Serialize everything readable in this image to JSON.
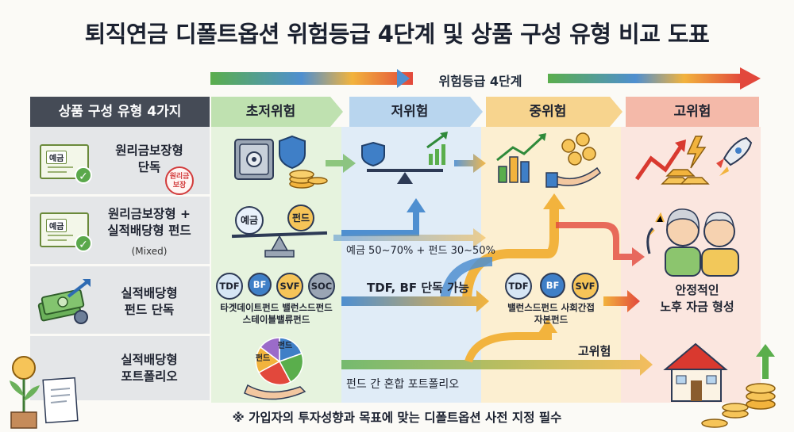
{
  "title": "퇴직연금 디폴트옵션 위험등급 4단계 및 상품 구성 유형 비교 도표",
  "stage_caption": "위험등급 4단계",
  "header": {
    "types_label": "상품 구성 유형 4가지",
    "levels": [
      "초저위험",
      "저위험",
      "중위험",
      "고위험"
    ]
  },
  "rows": [
    {
      "title": "원리금보장형\n단독",
      "card_tag": "예금",
      "stamp": "원리금\n보장"
    },
    {
      "title": "원리금보장형 +\n실적배당형 펀드",
      "sub": "(Mixed)",
      "card_tag": "예금"
    },
    {
      "title": "실적배당형\n펀드 단독"
    },
    {
      "title": "실적배당형\n포트폴리오"
    }
  ],
  "row2_chips": {
    "left": "예금",
    "right": "펀드"
  },
  "row3_funds": {
    "chips": [
      "TDF",
      "BF",
      "SVF",
      "SOC"
    ],
    "line1": "타겟데이트펀드 밸런스드펀드",
    "line2": "스테이블밸류펀드"
  },
  "row4_pie_labels": [
    "펀드",
    "펀드"
  ],
  "mid_funds": {
    "chips": [
      "TDF",
      "BF",
      "SVF"
    ],
    "line1": "밸런스드펀드 사회간접",
    "line2": "자본펀드"
  },
  "flows": {
    "mix_ratio": "예금 50~70% + 펀드 30~50%",
    "tdf_bf_only": "TDF, BF 단독 가능",
    "high_risk": "고위험",
    "portfolio_mix": "펀드 간 혼합 포트폴리오"
  },
  "outcome": "안정적인\n노후 자금 형성",
  "footer": "※ 가입자의 투자성향과 목표에 맞는 디폴트옵션 사전 지정 필수",
  "colors": {
    "very_low": "#dcefd3",
    "low": "#d6e6f5",
    "medium": "#fbeac4",
    "high": "#f9dcd3",
    "dark_header": "#454b56",
    "arrow_start": "#52a84a",
    "arrow_mid": "#f2b33d",
    "arrow_end": "#e2483c"
  },
  "icons": [
    "safe-icon",
    "shield-icon",
    "coins-icon",
    "seesaw-icon",
    "growth-chart-icon",
    "hand-coins-icon",
    "zigzag-arrow-icon",
    "lightning-icon",
    "gold-bars-icon",
    "rocket-icon",
    "elderly-couple-icon",
    "house-icon",
    "cash-stack-icon",
    "pie-chart-icon",
    "receipt-icon",
    "money-plant-icon"
  ]
}
